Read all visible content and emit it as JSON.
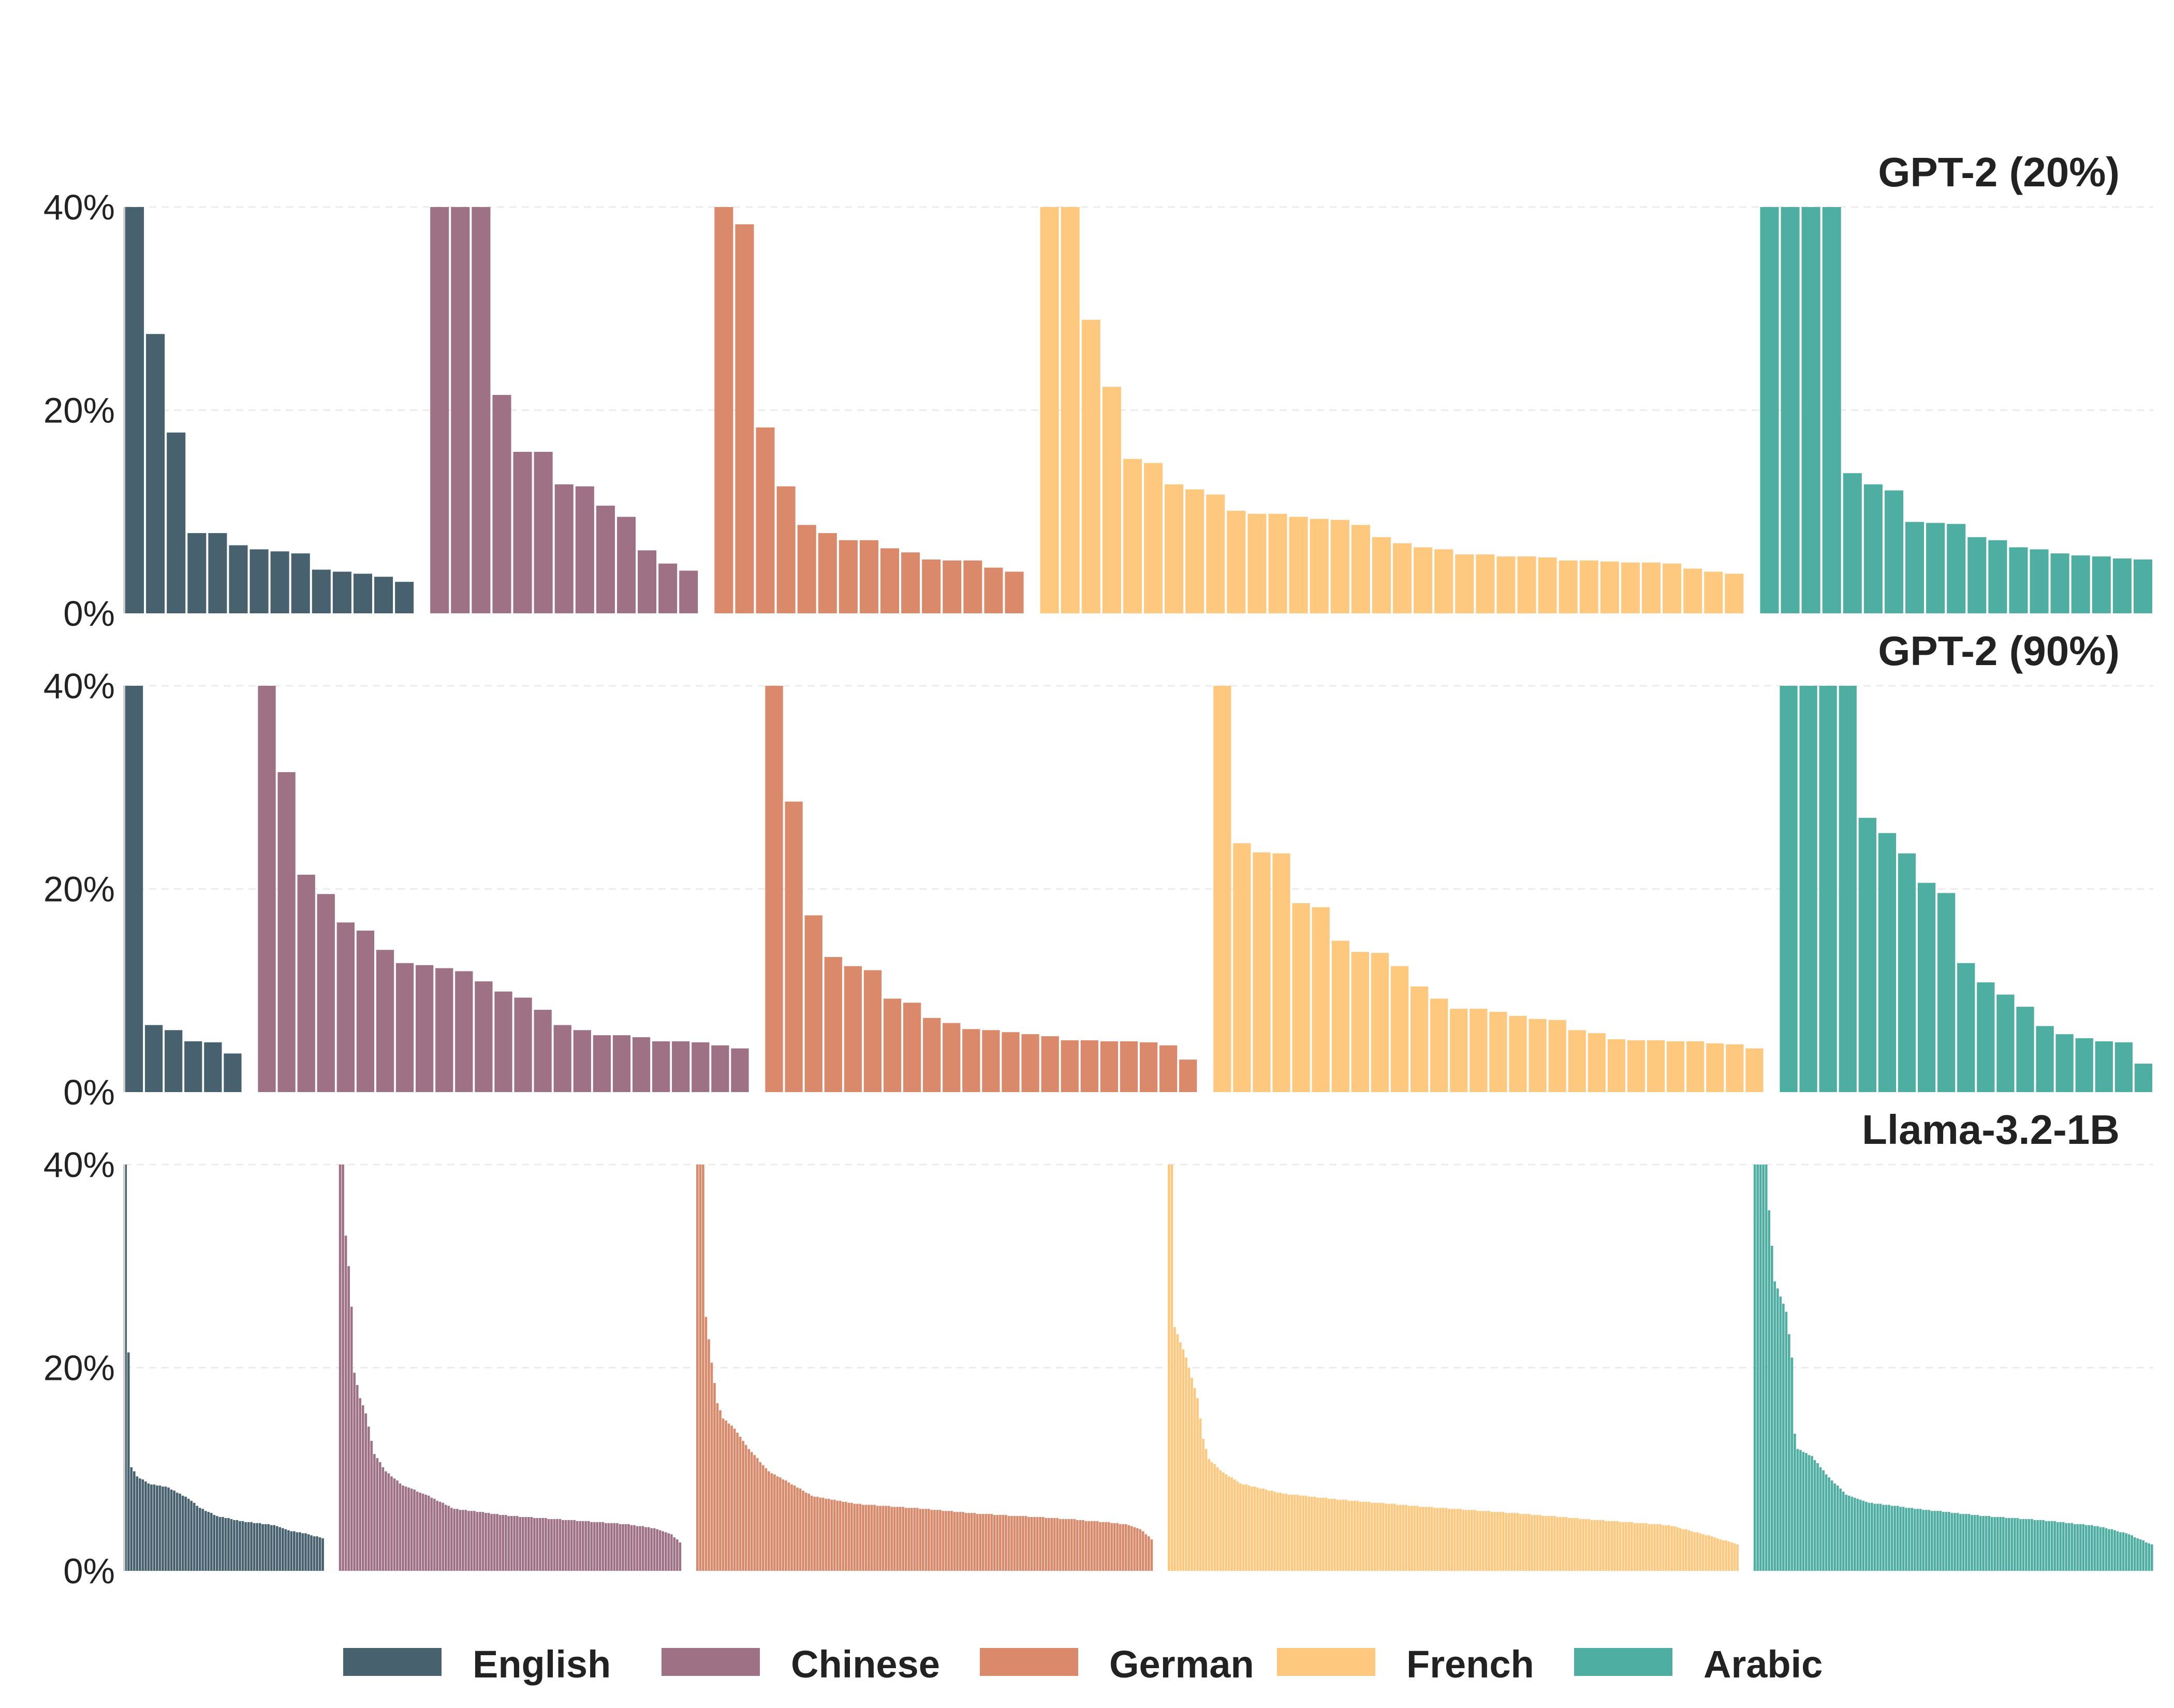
{
  "chart_data": {
    "type": "bar",
    "legend": {
      "position": "bottom-center",
      "entries": [
        {
          "name": "English",
          "color": "#47626E"
        },
        {
          "name": "Chinese",
          "color": "#9E7184"
        },
        {
          "name": "German",
          "color": "#DA896A"
        },
        {
          "name": "French",
          "color": "#FEC87E"
        },
        {
          "name": "Arabic",
          "color": "#4EAEA2"
        }
      ]
    },
    "panels": [
      {
        "title": "GPT-2 (20%)",
        "ylim": [
          0,
          40
        ],
        "yticks": [
          0,
          20,
          40
        ],
        "ytick_labels": [
          "0%",
          "20%",
          "40%"
        ],
        "grid": true,
        "groups": [
          {
            "language": "English",
            "values": [
              40,
              27.5,
              17.8,
              7.9,
              7.9,
              6.7,
              6.3,
              6.1,
              5.9,
              4.3,
              4.1,
              3.9,
              3.6,
              3.1
            ]
          },
          {
            "language": "Chinese",
            "values": [
              40,
              40,
              40,
              21.5,
              15.9,
              15.9,
              12.7,
              12.5,
              10.6,
              9.5,
              6.2,
              4.9,
              4.2
            ]
          },
          {
            "language": "German",
            "values": [
              40,
              38.3,
              18.3,
              12.5,
              8.7,
              7.9,
              7.2,
              7.2,
              6.4,
              6.0,
              5.3,
              5.2,
              5.2,
              4.5,
              4.1
            ]
          },
          {
            "language": "French",
            "values": [
              40,
              40,
              28.9,
              22.3,
              15.2,
              14.8,
              12.7,
              12.2,
              11.7,
              10.1,
              9.8,
              9.8,
              9.5,
              9.3,
              9.2,
              8.7,
              7.5,
              6.9,
              6.5,
              6.3,
              5.8,
              5.8,
              5.6,
              5.6,
              5.5,
              5.2,
              5.2,
              5.1,
              5.0,
              5.0,
              4.9,
              4.4,
              4.1,
              3.9
            ]
          },
          {
            "language": "Arabic",
            "values": [
              40,
              40,
              40,
              40,
              13.8,
              12.7,
              12.1,
              9.0,
              8.9,
              8.8,
              7.5,
              7.2,
              6.5,
              6.3,
              5.9,
              5.7,
              5.6,
              5.4,
              5.3
            ]
          }
        ]
      },
      {
        "title": "GPT-2 (90%)",
        "ylim": [
          0,
          40
        ],
        "yticks": [
          0,
          20,
          40
        ],
        "ytick_labels": [
          "0%",
          "20%",
          "40%"
        ],
        "grid": true,
        "groups": [
          {
            "language": "English",
            "values": [
              40,
              6.6,
              6.1,
              5.0,
              4.9,
              3.8
            ]
          },
          {
            "language": "Chinese",
            "values": [
              40,
              31.5,
              21.4,
              19.5,
              16.7,
              15.9,
              14.0,
              12.7,
              12.5,
              12.2,
              11.9,
              10.9,
              9.9,
              9.3,
              8.1,
              6.6,
              6.1,
              5.6,
              5.6,
              5.4,
              5.0,
              5.0,
              4.9,
              4.6,
              4.3
            ]
          },
          {
            "language": "German",
            "values": [
              40,
              28.6,
              17.4,
              13.3,
              12.4,
              12.0,
              9.2,
              8.8,
              7.3,
              6.8,
              6.2,
              6.1,
              5.9,
              5.7,
              5.5,
              5.1,
              5.1,
              5.0,
              5.0,
              4.9,
              4.6,
              3.2
            ]
          },
          {
            "language": "French",
            "values": [
              40,
              24.5,
              23.6,
              23.5,
              18.6,
              18.2,
              14.9,
              13.8,
              13.7,
              12.4,
              10.4,
              9.2,
              8.2,
              8.2,
              7.9,
              7.5,
              7.2,
              7.1,
              6.1,
              5.8,
              5.2,
              5.1,
              5.1,
              5.0,
              5.0,
              4.8,
              4.7,
              4.3
            ]
          },
          {
            "language": "Arabic",
            "values": [
              40,
              40,
              40,
              40,
              27,
              25.5,
              23.5,
              20.6,
              19.6,
              12.7,
              10.8,
              9.6,
              8.4,
              6.5,
              5.7,
              5.3,
              5.0,
              4.9,
              2.8
            ]
          }
        ]
      },
      {
        "title": "Llama-3.2-1B",
        "ylim": [
          0,
          40
        ],
        "yticks": [
          0,
          20,
          40
        ],
        "ytick_labels": [
          "0%",
          "20%",
          "40%"
        ],
        "grid": true,
        "groups": [
          {
            "language": "English",
            "count": 70,
            "curve": [
              [
                0,
                40
              ],
              [
                1,
                21.5
              ],
              [
                2,
                10.2
              ],
              [
                4,
                9.3
              ],
              [
                8,
                8.6
              ],
              [
                15,
                8.2
              ],
              [
                22,
                7.1
              ],
              [
                26,
                6.2
              ],
              [
                32,
                5.4
              ],
              [
                40,
                4.9
              ],
              [
                52,
                4.5
              ],
              [
                58,
                3.9
              ],
              [
                64,
                3.6
              ],
              [
                69,
                3.2
              ]
            ]
          },
          {
            "language": "Chinese",
            "count": 120,
            "curve": [
              [
                0,
                40
              ],
              [
                1,
                40
              ],
              [
                2,
                33
              ],
              [
                3,
                30
              ],
              [
                4,
                26
              ],
              [
                5,
                19.5
              ],
              [
                7,
                17
              ],
              [
                9,
                15.5
              ],
              [
                12,
                11.5
              ],
              [
                16,
                9.8
              ],
              [
                22,
                8.4
              ],
              [
                30,
                7.5
              ],
              [
                40,
                6.1
              ],
              [
                60,
                5.4
              ],
              [
                80,
                5.0
              ],
              [
                100,
                4.6
              ],
              [
                110,
                4.2
              ],
              [
                116,
                3.6
              ],
              [
                119,
                2.8
              ]
            ]
          },
          {
            "language": "German",
            "count": 160,
            "curve": [
              [
                0,
                40
              ],
              [
                1,
                40
              ],
              [
                2,
                40
              ],
              [
                3,
                25
              ],
              [
                5,
                20.5
              ],
              [
                7,
                16.5
              ],
              [
                9,
                15
              ],
              [
                13,
                14
              ],
              [
                18,
                12
              ],
              [
                25,
                9.8
              ],
              [
                32,
                8.7
              ],
              [
                40,
                7.4
              ],
              [
                55,
                6.6
              ],
              [
                75,
                6.2
              ],
              [
                100,
                5.6
              ],
              [
                130,
                5.1
              ],
              [
                150,
                4.6
              ],
              [
                155,
                4.1
              ],
              [
                159,
                3.1
              ]
            ]
          },
          {
            "language": "French",
            "count": 200,
            "curve": [
              [
                0,
                40
              ],
              [
                1,
                40
              ],
              [
                2,
                24
              ],
              [
                4,
                22.5
              ],
              [
                6,
                21
              ],
              [
                8,
                19
              ],
              [
                10,
                17
              ],
              [
                12,
                13
              ],
              [
                14,
                11
              ],
              [
                18,
                9.9
              ],
              [
                25,
                8.6
              ],
              [
                40,
                7.6
              ],
              [
                60,
                7.0
              ],
              [
                90,
                6.3
              ],
              [
                120,
                5.7
              ],
              [
                150,
                5.0
              ],
              [
                175,
                4.5
              ],
              [
                190,
                3.4
              ],
              [
                199,
                2.6
              ]
            ]
          },
          {
            "language": "Arabic",
            "count": 140,
            "curve": [
              [
                0,
                40
              ],
              [
                4,
                40
              ],
              [
                5,
                35.5
              ],
              [
                7,
                28.5
              ],
              [
                9,
                27
              ],
              [
                11,
                25.5
              ],
              [
                13,
                21
              ],
              [
                14,
                13.5
              ],
              [
                15,
                12
              ],
              [
                20,
                11.3
              ],
              [
                25,
                9.5
              ],
              [
                32,
                7.5
              ],
              [
                40,
                6.7
              ],
              [
                60,
                6.0
              ],
              [
                80,
                5.4
              ],
              [
                100,
                5.0
              ],
              [
                120,
                4.4
              ],
              [
                130,
                3.7
              ],
              [
                139,
                2.6
              ]
            ]
          }
        ]
      }
    ]
  }
}
